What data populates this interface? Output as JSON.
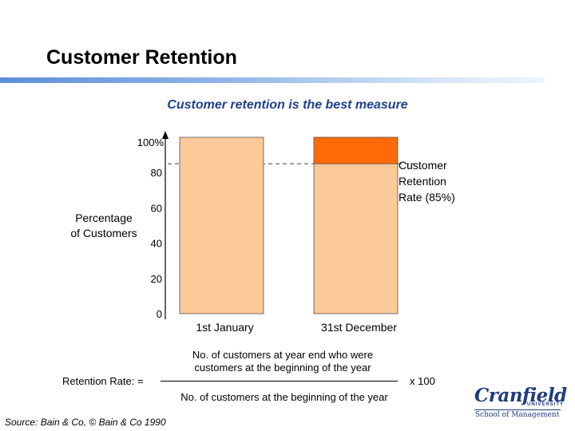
{
  "slide": {
    "title": "Customer Retention",
    "subtitle": "Customer retention is the best measure"
  },
  "chart_data": {
    "type": "bar",
    "stacked": true,
    "categories": [
      "1st January",
      "31st December"
    ],
    "series": [
      {
        "values": [
          100,
          85
        ],
        "color": "#fcc998"
      },
      {
        "values": [
          0,
          15
        ],
        "color": "#ff6a08"
      }
    ],
    "ylabel": "Percentage of Customers",
    "ylabel_lines": [
      "Percentage",
      "of Customers"
    ],
    "yticks": [
      "0",
      "20",
      "40",
      "60",
      "80",
      "100%"
    ],
    "ytick_values": [
      0,
      20,
      40,
      60,
      80,
      100
    ],
    "ylim": [
      0,
      100
    ],
    "reference_line": {
      "value": 85,
      "style": "dashed"
    },
    "annotation": "Customer Retention Rate (85%)",
    "annotation_lines": [
      "Customer",
      "Retention",
      "Rate (85%)"
    ],
    "grid": false
  },
  "formula": {
    "label": "Retention Rate: =",
    "numerator_lines": [
      "No. of customers at year end who were",
      "customers at the beginning of the year"
    ],
    "denominator": "No. of customers at the beginning of the year",
    "multiplier": "x 100"
  },
  "source": "Source: Bain & Co, © Bain & Co 1990",
  "logo": {
    "name": "Cranfield",
    "university": "UNIVERSITY",
    "school": "School of Management"
  }
}
